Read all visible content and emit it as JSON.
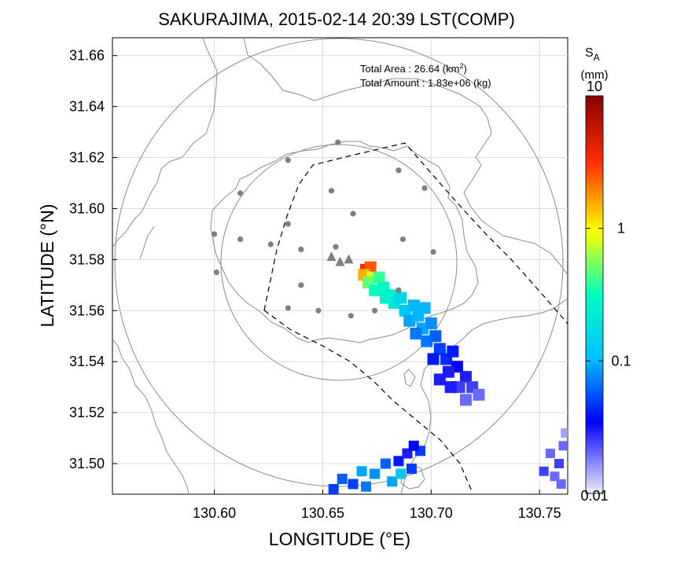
{
  "title": "SAKURAJIMA, 2015-02-14 20:39 LST(COMP)",
  "axes": {
    "xlabel": "LONGITUDE (°E)",
    "ylabel": "LATITUDE (°N)",
    "x_ticks": [
      "130.60",
      "130.65",
      "130.70",
      "130.75"
    ],
    "y_ticks": [
      "31.66",
      "31.64",
      "31.62",
      "31.60",
      "31.58",
      "31.56",
      "31.54",
      "31.52",
      "31.50"
    ],
    "xlim": [
      130.553,
      130.763
    ],
    "ylim": [
      31.488,
      31.667
    ]
  },
  "annotation": {
    "area_label": "Total Area   : 26.64 (km",
    "area_sup": "2",
    "area_close": ")",
    "amount_label": "Total Amount : 1.83e+06 (kg)"
  },
  "colorbar": {
    "label_main": "S",
    "label_sub": "A",
    "unit": "(mm)",
    "ticks": [
      "10",
      "1",
      "0.1",
      "0.01"
    ],
    "scale": "log",
    "colors": [
      "#eeeeff",
      "#0000ff",
      "#00bfff",
      "#00ffc0",
      "#ffff00",
      "#ff3000",
      "#8b0000"
    ]
  },
  "map_data": {
    "vent_triangles": [
      [
        130.654,
        31.581
      ],
      [
        130.658,
        31.579
      ],
      [
        130.662,
        31.58
      ]
    ],
    "stations": [
      [
        130.657,
        31.626
      ],
      [
        130.634,
        31.619
      ],
      [
        130.685,
        31.615
      ],
      [
        130.697,
        31.608
      ],
      [
        130.654,
        31.607
      ],
      [
        130.612,
        31.606
      ],
      [
        130.664,
        31.598
      ],
      [
        130.6,
        31.59
      ],
      [
        130.612,
        31.588
      ],
      [
        130.634,
        31.594
      ],
      [
        130.687,
        31.588
      ],
      [
        130.701,
        31.583
      ],
      [
        130.626,
        31.586
      ],
      [
        130.64,
        31.584
      ],
      [
        130.656,
        31.585
      ],
      [
        130.601,
        31.575
      ],
      [
        130.64,
        31.57
      ],
      [
        130.634,
        31.561
      ],
      [
        130.648,
        31.56
      ],
      [
        130.663,
        31.558
      ],
      [
        130.674,
        31.56
      ],
      [
        130.685,
        31.568
      ]
    ],
    "plume": [
      [
        130.67,
        31.576,
        3.5
      ],
      [
        130.672,
        31.577,
        2.5
      ],
      [
        130.669,
        31.574,
        1.5
      ],
      [
        130.673,
        31.573,
        0.8
      ],
      [
        130.671,
        31.571,
        0.5
      ],
      [
        130.676,
        31.573,
        0.4
      ],
      [
        130.678,
        31.569,
        0.3
      ],
      [
        130.674,
        31.568,
        0.3
      ],
      [
        130.681,
        31.566,
        0.25
      ],
      [
        130.683,
        31.563,
        0.2
      ],
      [
        130.679,
        31.565,
        0.25
      ],
      [
        130.686,
        31.565,
        0.15
      ],
      [
        130.688,
        31.56,
        0.12
      ],
      [
        130.692,
        31.562,
        0.1
      ],
      [
        130.69,
        31.556,
        0.09
      ],
      [
        130.694,
        31.558,
        0.1
      ],
      [
        130.696,
        31.553,
        0.09
      ],
      [
        130.7,
        31.555,
        0.08
      ],
      [
        130.698,
        31.548,
        0.07
      ],
      [
        130.702,
        31.55,
        0.06
      ],
      [
        130.704,
        31.545,
        0.05
      ],
      [
        130.707,
        31.541,
        0.045
      ],
      [
        130.701,
        31.541,
        0.04
      ],
      [
        130.71,
        31.544,
        0.04
      ],
      [
        130.712,
        31.538,
        0.035
      ],
      [
        130.708,
        31.536,
        0.03
      ],
      [
        130.716,
        31.534,
        0.03
      ],
      [
        130.713,
        31.53,
        0.025
      ],
      [
        130.719,
        31.53,
        0.025
      ],
      [
        130.709,
        31.53,
        0.03
      ],
      [
        130.704,
        31.533,
        0.03
      ],
      [
        130.716,
        31.525,
        0.02
      ],
      [
        130.722,
        31.527,
        0.02
      ],
      [
        130.697,
        31.561,
        0.1
      ],
      [
        130.693,
        31.551,
        0.07
      ]
    ],
    "south_fan": [
      [
        130.664,
        31.492,
        0.05
      ],
      [
        130.659,
        31.494,
        0.06
      ],
      [
        130.668,
        31.497,
        0.09
      ],
      [
        130.674,
        31.496,
        0.08
      ],
      [
        130.679,
        31.5,
        0.06
      ],
      [
        130.685,
        31.501,
        0.04
      ],
      [
        130.689,
        31.504,
        0.03
      ],
      [
        130.691,
        31.498,
        0.05
      ],
      [
        130.695,
        31.505,
        0.05
      ],
      [
        130.692,
        31.507,
        0.035
      ],
      [
        130.655,
        31.49,
        0.05
      ],
      [
        130.67,
        31.491,
        0.07
      ],
      [
        130.682,
        31.493,
        0.09
      ],
      [
        130.686,
        31.496,
        0.12
      ]
    ],
    "east_patch": [
      [
        130.755,
        31.504,
        0.02
      ],
      [
        130.759,
        31.5,
        0.025
      ],
      [
        130.752,
        31.497,
        0.025
      ],
      [
        130.757,
        31.495,
        0.02
      ],
      [
        130.761,
        31.507,
        0.02
      ],
      [
        130.76,
        31.492,
        0.02
      ],
      [
        130.762,
        31.512,
        0.015
      ]
    ]
  }
}
